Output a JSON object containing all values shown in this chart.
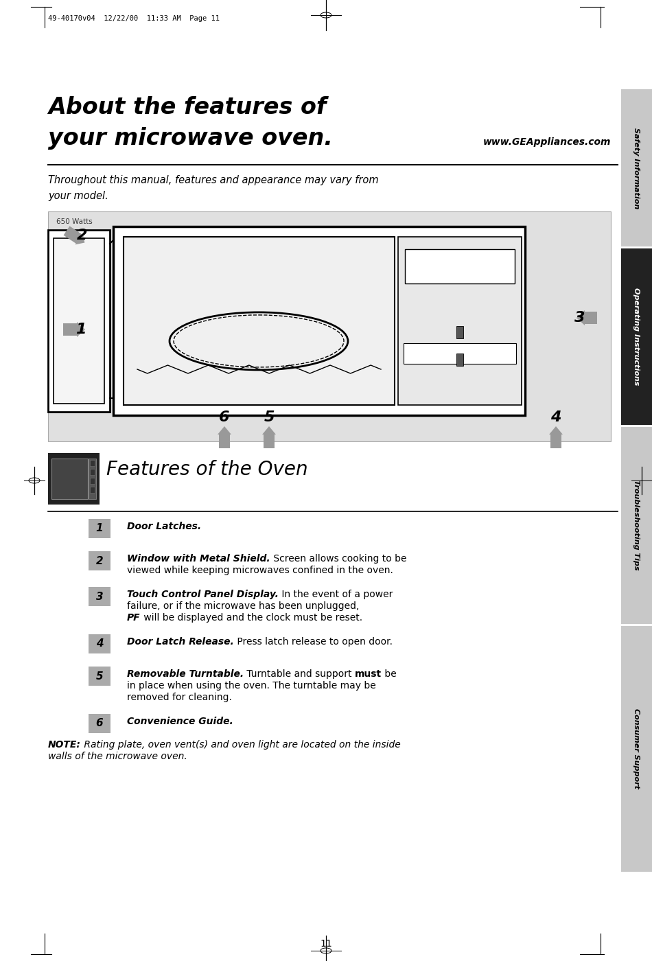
{
  "page_header": "49-40170v04  12/22/00  11:33 AM  Page 11",
  "page_number": "11",
  "main_title_line1": "About the features of",
  "main_title_line2": "your microwave oven.",
  "website": "www.GEAppliances.com",
  "subtitle_line1": "Throughout this manual, features and appearance may vary from",
  "subtitle_line2": "your model.",
  "watts_label": "650 Watts",
  "section_title": "Features of the Oven",
  "sidebar_labels": [
    "Safety Information",
    "Operating Instructions",
    "Troubleshooting Tips",
    "Consumer Support"
  ],
  "sidebar_color": "#c8c8c8",
  "sidebar_dark_color": "#222222",
  "background_color": "#ffffff",
  "image_bg_color": "#e0e0e0"
}
